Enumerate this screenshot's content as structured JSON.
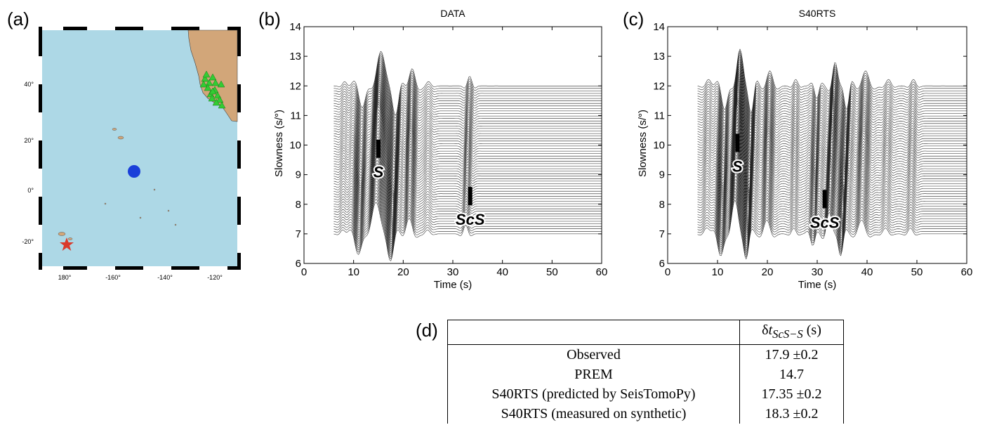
{
  "panels": {
    "a": "(a)",
    "b": "(b)",
    "c": "(c)",
    "d": "(d)"
  },
  "map": {
    "lat_ticks": [
      "40°",
      "20°",
      "0°",
      "-20°"
    ],
    "lon_ticks": [
      "180°",
      "-160°",
      "-140°",
      "-120°"
    ],
    "colors": {
      "ocean": "#add8e6",
      "land": "#d2a679",
      "station": "#33cc33",
      "midpoint": "#1a3fd9",
      "event": "#d93a2b"
    }
  },
  "chart_data": [
    {
      "type": "line",
      "title": "DATA",
      "xlabel": "Time (s)",
      "ylabel": "Slowness (s/°)",
      "xlim": [
        0,
        60
      ],
      "ylim": [
        6,
        14
      ],
      "xticks": [
        "0",
        "10",
        "20",
        "30",
        "40",
        "50",
        "60"
      ],
      "yticks": [
        "6",
        "7",
        "8",
        "9",
        "10",
        "11",
        "12",
        "13",
        "14"
      ],
      "slowness_range": [
        7,
        12
      ],
      "trace_count": 60,
      "annotations": [
        {
          "label": "S",
          "time": 15.0,
          "slowness": 9.9
        },
        {
          "label": "ScS",
          "time": 33.5,
          "slowness": 8.3
        }
      ]
    },
    {
      "type": "line",
      "title": "S40RTS",
      "xlabel": "Time (s)",
      "ylabel": "Slowness (s/°)",
      "xlim": [
        0,
        60
      ],
      "ylim": [
        6,
        14
      ],
      "xticks": [
        "0",
        "10",
        "20",
        "30",
        "40",
        "50",
        "60"
      ],
      "yticks": [
        "6",
        "7",
        "8",
        "9",
        "10",
        "11",
        "12",
        "13",
        "14"
      ],
      "slowness_range": [
        7,
        12
      ],
      "trace_count": 60,
      "annotations": [
        {
          "label": "S",
          "time": 14.0,
          "slowness": 10.1
        },
        {
          "label": "ScS",
          "time": 31.5,
          "slowness": 8.2
        }
      ]
    }
  ],
  "table": {
    "header": [
      "",
      "δt_{ScS−S} (s)"
    ],
    "header_html": "δ<i>t</i><sub><i>ScS−S</i></sub> (s)",
    "rows": [
      [
        "Observed",
        "17.9 ±0.2"
      ],
      [
        "PREM",
        "14.7"
      ],
      [
        "S40RTS (predicted by SeisTomoPy)",
        "17.35 ±0.2"
      ],
      [
        "S40RTS (measured on synthetic)",
        "18.3 ±0.2"
      ]
    ]
  }
}
